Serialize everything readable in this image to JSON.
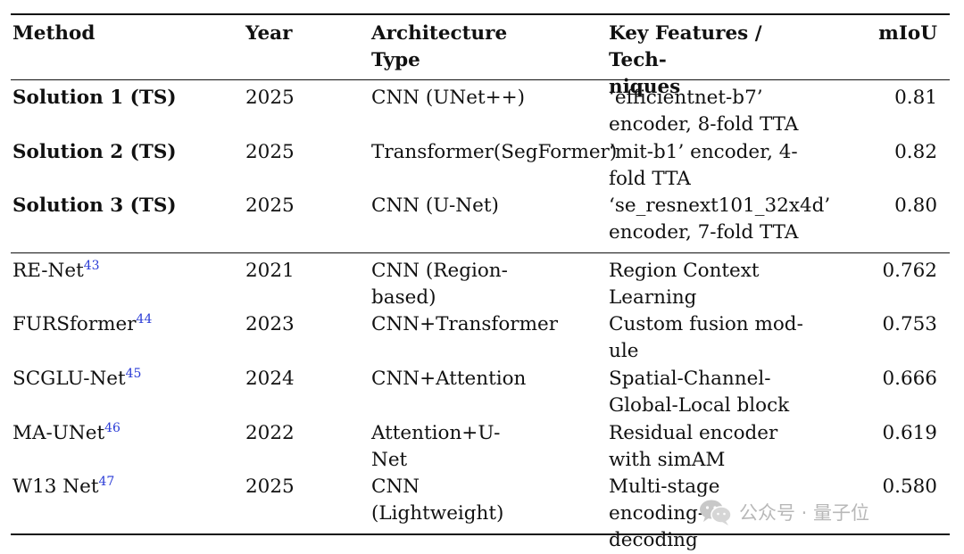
{
  "headers": {
    "method": "Method",
    "year": "Year",
    "arch": "Architecture\nType",
    "features": "Key Features / Tech-\nniques",
    "miou": "mIoU"
  },
  "rows": [
    {
      "method": "Solution 1 (TS)",
      "ref": "",
      "year": "2025",
      "arch": "CNN (UNet++)",
      "features": "‘efficientnet-b7’\nencoder, 8-fold TTA",
      "miou": "0.81"
    },
    {
      "method": "Solution 2 (TS)",
      "ref": "",
      "year": "2025",
      "arch": "Transformer(SegFormer)",
      "features": "‘mit-b1’ encoder, 4-\nfold TTA",
      "miou": "0.82"
    },
    {
      "method": "Solution 3 (TS)",
      "ref": "",
      "year": "2025",
      "arch": "CNN (U-Net)",
      "features": "‘se_resnext101_32x4d’\nencoder, 7-fold TTA",
      "miou": "0.80"
    },
    {
      "method": "RE-Net",
      "ref": "43",
      "year": "2021",
      "arch": "CNN (Region-\nbased)",
      "features": "Region Context\nLearning",
      "miou": "0.762"
    },
    {
      "method": "FURSformer",
      "ref": "44",
      "year": "2023",
      "arch": "CNN+Transformer",
      "features": "Custom fusion mod-\nule",
      "miou": "0.753"
    },
    {
      "method": "SCGLU-Net",
      "ref": "45",
      "year": "2024",
      "arch": "CNN+Attention",
      "features": "Spatial-Channel-\nGlobal-Local block",
      "miou": "0.666"
    },
    {
      "method": "MA-UNet",
      "ref": "46",
      "year": "2022",
      "arch": "Attention+U-\nNet",
      "features": "Residual encoder\nwith simAM",
      "miou": "0.619"
    },
    {
      "method": "W13 Net",
      "ref": "47",
      "year": "2025",
      "arch": "CNN\n(Lightweight)",
      "features": "Multi-stage encoding-\ndecoding",
      "miou": "0.580"
    }
  ],
  "watermark": {
    "icon": "wechat-icon",
    "text": "公众号 · 量子位"
  }
}
